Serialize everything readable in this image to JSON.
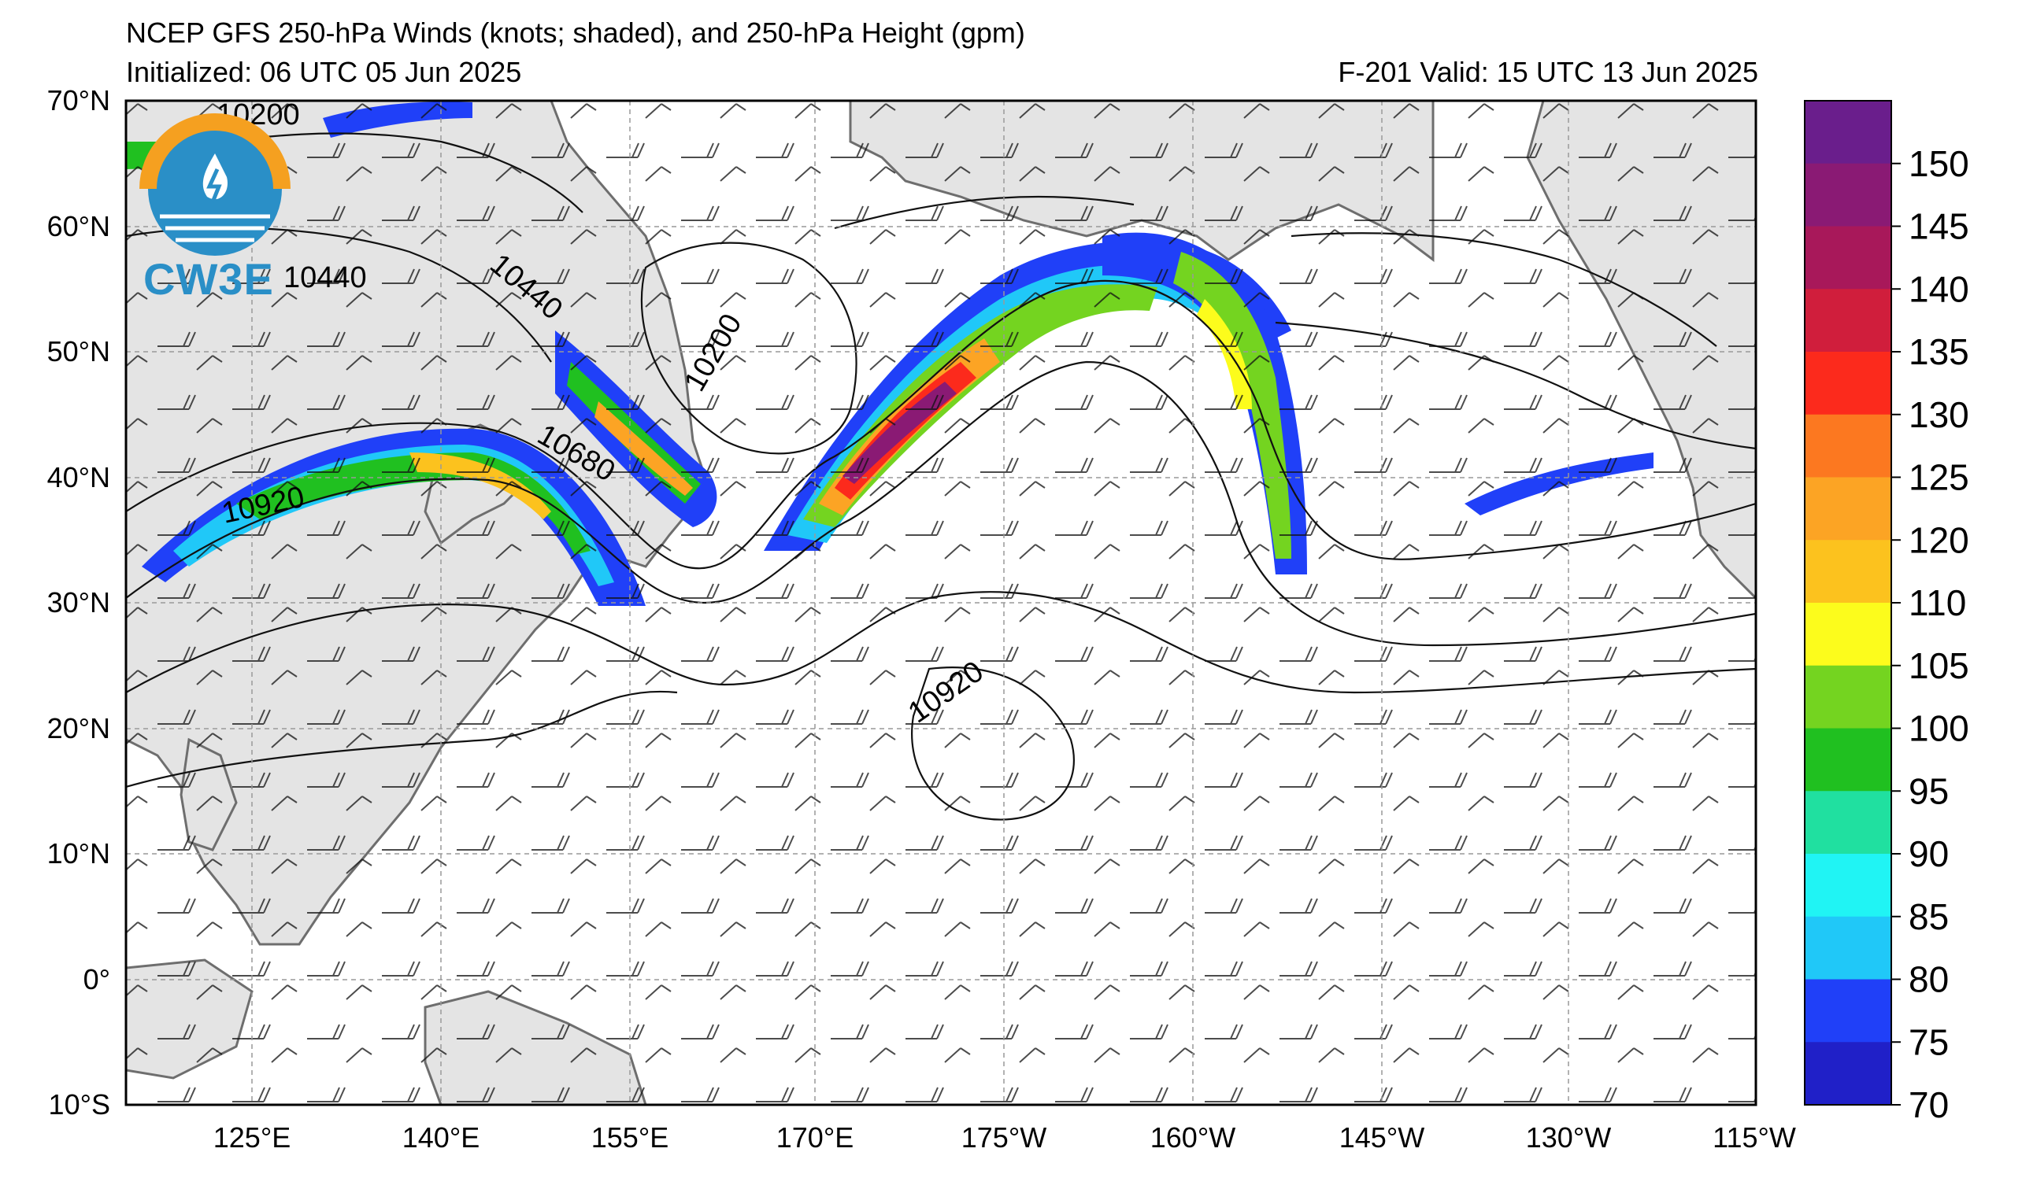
{
  "title": {
    "line1": "NCEP GFS 250-hPa Winds (knots; shaded), and 250-hPa Height (gpm)",
    "line2": "Initialized: 06 UTC 05 Jun 2025",
    "valid": "F-201  Valid: 15 UTC 13 Jun 2025"
  },
  "map": {
    "lat_labels": [
      "70°N",
      "60°N",
      "50°N",
      "40°N",
      "30°N",
      "20°N",
      "10°N",
      "0°",
      "10°S"
    ],
    "lon_labels": [
      "125°E",
      "140°E",
      "155°E",
      "170°E",
      "175°W",
      "160°W",
      "145°W",
      "130°W",
      "115°W"
    ],
    "contour_labels": [
      "10200",
      "10440",
      "10440",
      "10200",
      "10680",
      "10920",
      "10920"
    ],
    "land_color": "#e4e4e4",
    "coast_color": "#6e6e6e"
  },
  "colorbar": {
    "labels": [
      "150",
      "145",
      "140",
      "135",
      "130",
      "125",
      "120",
      "110",
      "105",
      "100",
      "95",
      "90",
      "85",
      "80",
      "75",
      "70"
    ],
    "colors": [
      "#6a1e8c",
      "#8a1a74",
      "#a8185a",
      "#d01e3c",
      "#fc2a1c",
      "#fc7820",
      "#fca424",
      "#fcc21e",
      "#fcfc1c",
      "#74d420",
      "#20c020",
      "#20e0a0",
      "#20f4f4",
      "#20c8f8",
      "#2040f8",
      "#2020c8"
    ]
  },
  "logo": {
    "text": "CW3E"
  }
}
